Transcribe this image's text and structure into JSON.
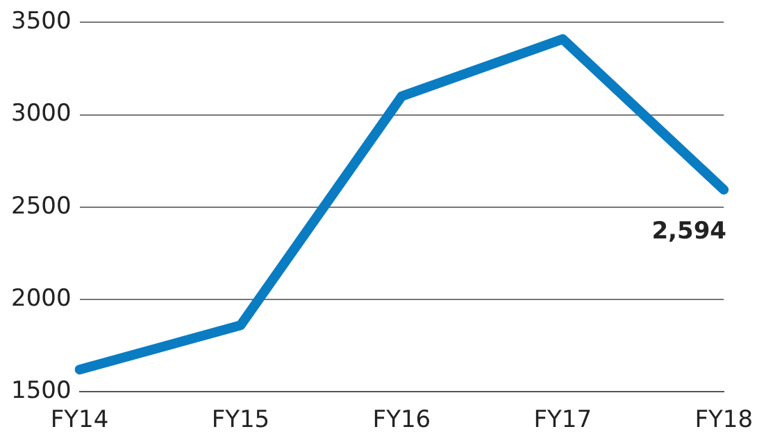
{
  "chart_data": {
    "type": "line",
    "categories": [
      "FY14",
      "FY15",
      "FY16",
      "FY17",
      "FY18"
    ],
    "series": [
      {
        "color": "#0a7cc2",
        "values": [
          1620,
          1860,
          3100,
          3410,
          2594
        ],
        "value_labels": [
          null,
          null,
          null,
          null,
          "2,594"
        ]
      }
    ],
    "ylim": [
      1500,
      3500
    ],
    "yticks": [
      1500,
      2000,
      2500,
      3000,
      3500
    ],
    "grid": "y",
    "legend": false,
    "marker": "none",
    "line_style": "solid"
  }
}
